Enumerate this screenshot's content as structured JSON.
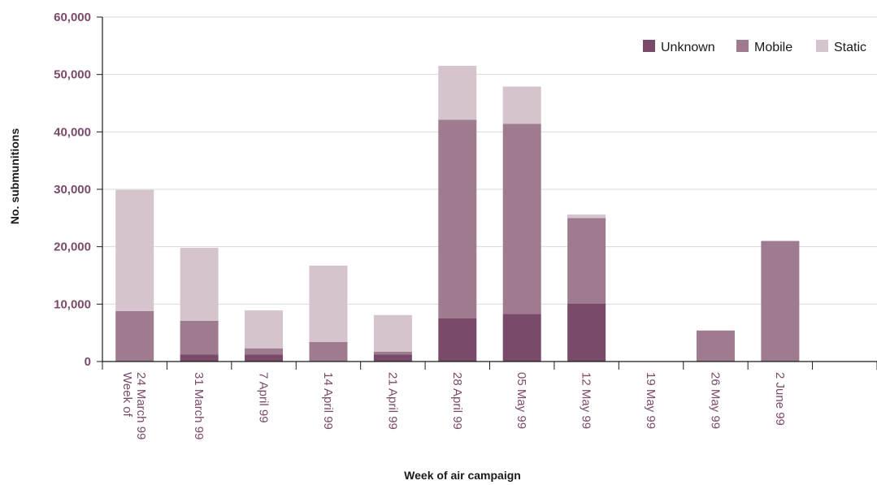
{
  "chart_data": {
    "type": "bar",
    "stacked": true,
    "title": "",
    "xlabel": "Week of air campaign",
    "ylabel": "No. submunitions",
    "ylim": [
      0,
      60000
    ],
    "yticks": [
      "0",
      "10,000",
      "20,000",
      "30,000",
      "40,000",
      "50,000",
      "60,000"
    ],
    "ytick_values": [
      0,
      10000,
      20000,
      30000,
      40000,
      50000,
      60000
    ],
    "grid": true,
    "legend_position": "top-right",
    "categories": [
      [
        "Week of",
        "24 March 99"
      ],
      [
        "31 March 99"
      ],
      [
        "7 April 99"
      ],
      [
        "14 April 99"
      ],
      [
        "21 April 99"
      ],
      [
        "28 April 99"
      ],
      [
        "05 May 99"
      ],
      [
        "12 May 99"
      ],
      [
        "19 May 99"
      ],
      [
        "26 May 99"
      ],
      [
        "2 June 99"
      ]
    ],
    "series": [
      {
        "name": "Unknown",
        "color": "#7a4a6b",
        "values": [
          0,
          1200,
          1200,
          0,
          1200,
          7500,
          8300,
          10100,
          0,
          0,
          0
        ]
      },
      {
        "name": "Mobile",
        "color": "#9e7b8f",
        "values": [
          8800,
          5900,
          1100,
          3400,
          500,
          34600,
          33100,
          14900,
          0,
          5400,
          21000
        ]
      },
      {
        "name": "Static",
        "color": "#d5c3cd",
        "values": [
          21100,
          12700,
          6600,
          13300,
          6400,
          9400,
          6500,
          600,
          0,
          0,
          0
        ]
      }
    ]
  }
}
